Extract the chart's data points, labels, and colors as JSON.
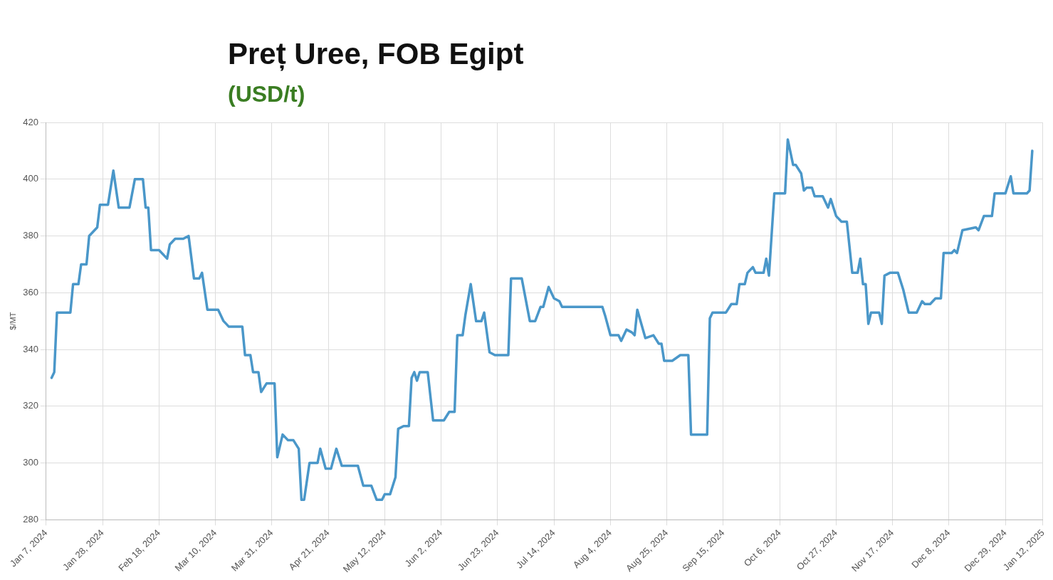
{
  "chart_data": {
    "type": "line",
    "title": "Preț Uree, FOB Egipt",
    "subtitle": "(USD/t)",
    "ylabel": "$/MT",
    "xlim": [
      "2024-01-07",
      "2025-01-12"
    ],
    "xticks": [
      {
        "value": "2024-01-07",
        "label": "Jan 7, 2024"
      },
      {
        "value": "2024-01-28",
        "label": "Jan 28, 2024"
      },
      {
        "value": "2024-02-18",
        "label": "Feb 18, 2024"
      },
      {
        "value": "2024-03-10",
        "label": "Mar 10, 2024"
      },
      {
        "value": "2024-03-31",
        "label": "Mar 31, 2024"
      },
      {
        "value": "2024-04-21",
        "label": "Apr 21, 2024"
      },
      {
        "value": "2024-05-12",
        "label": "May 12, 2024"
      },
      {
        "value": "2024-06-02",
        "label": "Jun 2, 2024"
      },
      {
        "value": "2024-06-23",
        "label": "Jun 23, 2024"
      },
      {
        "value": "2024-07-14",
        "label": "Jul 14, 2024"
      },
      {
        "value": "2024-08-04",
        "label": "Aug 4, 2024"
      },
      {
        "value": "2024-08-25",
        "label": "Aug 25, 2024"
      },
      {
        "value": "2024-09-15",
        "label": "Sep 15, 2024"
      },
      {
        "value": "2024-10-06",
        "label": "Oct 6, 2024"
      },
      {
        "value": "2024-10-27",
        "label": "Oct 27, 2024"
      },
      {
        "value": "2024-11-17",
        "label": "Nov 17, 2024"
      },
      {
        "value": "2024-12-08",
        "label": "Dec 8, 2024"
      },
      {
        "value": "2024-12-29",
        "label": "Dec 29, 2024"
      },
      {
        "value": "2025-01-12",
        "label": "Jan 12, 2025"
      }
    ],
    "ylim": [
      280,
      420
    ],
    "yticks": [
      280,
      300,
      320,
      340,
      360,
      380,
      400,
      420
    ],
    "grid": true,
    "legend": false,
    "marker": "none",
    "line_style": "solid",
    "series": [
      {
        "color": "#4a97c9",
        "x": [
          "2024-01-09",
          "2024-01-10",
          "2024-01-11",
          "2024-01-16",
          "2024-01-17",
          "2024-01-19",
          "2024-01-20",
          "2024-01-22",
          "2024-01-23",
          "2024-01-26",
          "2024-01-27",
          "2024-01-30",
          "2024-02-01",
          "2024-02-03",
          "2024-02-07",
          "2024-02-09",
          "2024-02-12",
          "2024-02-13",
          "2024-02-14",
          "2024-02-15",
          "2024-02-18",
          "2024-02-21",
          "2024-02-22",
          "2024-02-24",
          "2024-02-27",
          "2024-02-29",
          "2024-03-02",
          "2024-03-04",
          "2024-03-05",
          "2024-03-07",
          "2024-03-11",
          "2024-03-13",
          "2024-03-15",
          "2024-03-20",
          "2024-03-21",
          "2024-03-23",
          "2024-03-24",
          "2024-03-26",
          "2024-03-27",
          "2024-03-29",
          "2024-04-01",
          "2024-04-02",
          "2024-04-04",
          "2024-04-06",
          "2024-04-08",
          "2024-04-10",
          "2024-04-11",
          "2024-04-12",
          "2024-04-14",
          "2024-04-17",
          "2024-04-18",
          "2024-04-20",
          "2024-04-22",
          "2024-04-24",
          "2024-04-26",
          "2024-05-02",
          "2024-05-04",
          "2024-05-07",
          "2024-05-09",
          "2024-05-11",
          "2024-05-12",
          "2024-05-14",
          "2024-05-15",
          "2024-05-16",
          "2024-05-17",
          "2024-05-19",
          "2024-05-21",
          "2024-05-22",
          "2024-05-23",
          "2024-05-24",
          "2024-05-25",
          "2024-05-28",
          "2024-05-30",
          "2024-06-03",
          "2024-06-05",
          "2024-06-07",
          "2024-06-08",
          "2024-06-10",
          "2024-06-11",
          "2024-06-13",
          "2024-06-15",
          "2024-06-17",
          "2024-06-18",
          "2024-06-20",
          "2024-06-22",
          "2024-06-27",
          "2024-06-28",
          "2024-07-02",
          "2024-07-05",
          "2024-07-07",
          "2024-07-09",
          "2024-07-10",
          "2024-07-12",
          "2024-07-14",
          "2024-07-16",
          "2024-07-17",
          "2024-08-01",
          "2024-08-02",
          "2024-08-04",
          "2024-08-07",
          "2024-08-08",
          "2024-08-10",
          "2024-08-12",
          "2024-08-13",
          "2024-08-14",
          "2024-08-17",
          "2024-08-20",
          "2024-08-22",
          "2024-08-23",
          "2024-08-24",
          "2024-08-27",
          "2024-08-30",
          "2024-09-02",
          "2024-09-03",
          "2024-09-09",
          "2024-09-10",
          "2024-09-11",
          "2024-09-16",
          "2024-09-18",
          "2024-09-20",
          "2024-09-21",
          "2024-09-23",
          "2024-09-24",
          "2024-09-26",
          "2024-09-27",
          "2024-09-30",
          "2024-10-01",
          "2024-10-02",
          "2024-10-04",
          "2024-10-08",
          "2024-10-09",
          "2024-10-11",
          "2024-10-12",
          "2024-10-14",
          "2024-10-15",
          "2024-10-16",
          "2024-10-18",
          "2024-10-19",
          "2024-10-22",
          "2024-10-24",
          "2024-10-25",
          "2024-10-27",
          "2024-10-29",
          "2024-10-31",
          "2024-11-02",
          "2024-11-04",
          "2024-11-05",
          "2024-11-06",
          "2024-11-07",
          "2024-11-08",
          "2024-11-09",
          "2024-11-12",
          "2024-11-13",
          "2024-11-14",
          "2024-11-16",
          "2024-11-19",
          "2024-11-21",
          "2024-11-23",
          "2024-11-26",
          "2024-11-28",
          "2024-11-29",
          "2024-12-01",
          "2024-12-03",
          "2024-12-05",
          "2024-12-06",
          "2024-12-09",
          "2024-12-10",
          "2024-12-11",
          "2024-12-13",
          "2024-12-18",
          "2024-12-19",
          "2024-12-21",
          "2024-12-24",
          "2024-12-25",
          "2024-12-29",
          "2024-12-31",
          "2025-01-01",
          "2025-01-06",
          "2025-01-07",
          "2025-01-08"
        ],
        "values": [
          330,
          332,
          353,
          353,
          363,
          363,
          370,
          370,
          380,
          383,
          391,
          391,
          403,
          390,
          390,
          400,
          400,
          390,
          390,
          375,
          375,
          372,
          377,
          379,
          379,
          380,
          365,
          365,
          367,
          354,
          354,
          350,
          348,
          348,
          338,
          338,
          332,
          332,
          325,
          328,
          328,
          302,
          310,
          308,
          308,
          305,
          287,
          287,
          300,
          300,
          305,
          298,
          298,
          305,
          299,
          299,
          292,
          292,
          287,
          287,
          289,
          289,
          292,
          295,
          312,
          313,
          313,
          330,
          332,
          329,
          332,
          332,
          315,
          315,
          318,
          318,
          345,
          345,
          352,
          363,
          350,
          350,
          353,
          339,
          338,
          338,
          365,
          365,
          350,
          350,
          355,
          355,
          362,
          358,
          357,
          355,
          355,
          352,
          345,
          345,
          343,
          347,
          346,
          345,
          354,
          344,
          345,
          342,
          342,
          336,
          336,
          338,
          338,
          310,
          310,
          351,
          353,
          353,
          356,
          356,
          363,
          363,
          367,
          369,
          367,
          367,
          372,
          366,
          395,
          395,
          414,
          405,
          405,
          402,
          396,
          397,
          397,
          394,
          394,
          390,
          393,
          387,
          385,
          385,
          367,
          367,
          372,
          363,
          363,
          349,
          353,
          353,
          349,
          366,
          367,
          367,
          361,
          353,
          353,
          357,
          356,
          356,
          358,
          358,
          374,
          374,
          375,
          374,
          382,
          383,
          382,
          387,
          387,
          395,
          395,
          401,
          395,
          395,
          396,
          410
        ]
      }
    ]
  }
}
